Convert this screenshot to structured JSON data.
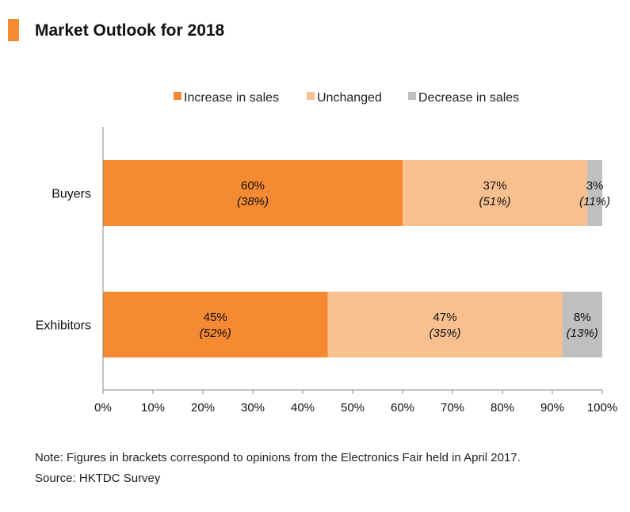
{
  "header": {
    "title": "Market Outlook for 2018"
  },
  "chart_data": {
    "type": "bar",
    "orientation": "horizontal",
    "stacked": true,
    "title": "Market Outlook for 2018",
    "categories": [
      "Buyers",
      "Exhibitors"
    ],
    "series": [
      {
        "name": "Increase in sales",
        "color": "#F58A33",
        "values": [
          60,
          45
        ],
        "labels": [
          "60%",
          "45%"
        ],
        "previous_labels": [
          "(38%)",
          "(52%)"
        ]
      },
      {
        "name": "Unchanged",
        "color": "#F8C08F",
        "values": [
          37,
          47
        ],
        "labels": [
          "37%",
          "47%"
        ],
        "previous_labels": [
          "(51%)",
          "(35%)"
        ]
      },
      {
        "name": "Decrease in sales",
        "color": "#BFBFBF",
        "values": [
          3,
          8
        ],
        "labels": [
          "3%",
          "8%"
        ],
        "previous_labels": [
          "(11%)",
          "(13%)"
        ]
      }
    ],
    "xlim": [
      0,
      100
    ],
    "xticks": [
      "0%",
      "10%",
      "20%",
      "30%",
      "40%",
      "50%",
      "60%",
      "70%",
      "80%",
      "90%",
      "100%"
    ],
    "legend_position": "top",
    "grid": false
  },
  "footer": {
    "note": "Note: Figures in brackets correspond to opinions from the Electronics Fair held in April 2017.",
    "source": "Source: HKTDC Survey"
  }
}
